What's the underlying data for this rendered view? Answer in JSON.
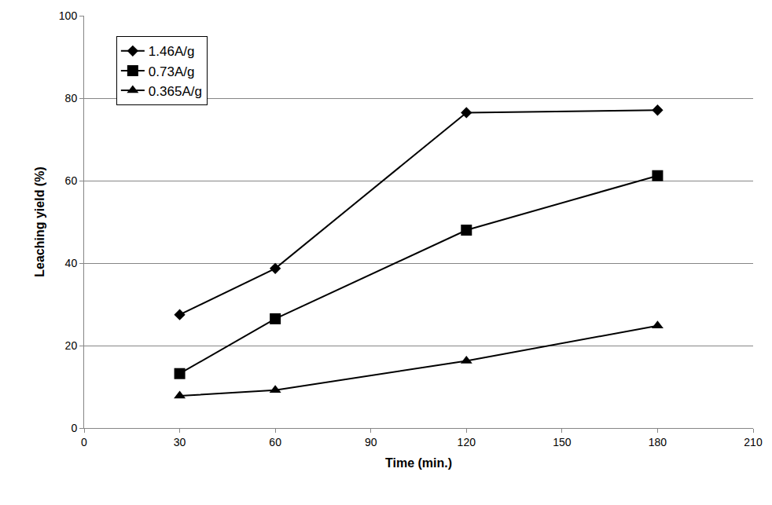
{
  "chart_data": {
    "type": "line",
    "x_label": "Time (min.)",
    "y_label": "Leaching yield (%)",
    "x": [
      30,
      60,
      120,
      180
    ],
    "series": [
      {
        "name": "1.46A/g",
        "color": "#000000",
        "marker": "diamond",
        "values": [
          27.5,
          38.7,
          76.5,
          77.1
        ]
      },
      {
        "name": "0.73A/g",
        "color": "#000000",
        "marker": "square",
        "values": [
          13.2,
          26.5,
          48.0,
          61.2
        ]
      },
      {
        "name": "0.365A/g",
        "color": "#000000",
        "marker": "triangle",
        "values": [
          7.8,
          9.2,
          16.3,
          24.8
        ]
      }
    ],
    "xlim": [
      0,
      210
    ],
    "xticks": [
      0,
      30,
      60,
      90,
      120,
      150,
      180,
      210
    ],
    "ylim": [
      0,
      100
    ],
    "yticks": [
      0,
      20,
      40,
      60,
      80,
      100
    ],
    "grid": true,
    "legend": "top-left"
  }
}
